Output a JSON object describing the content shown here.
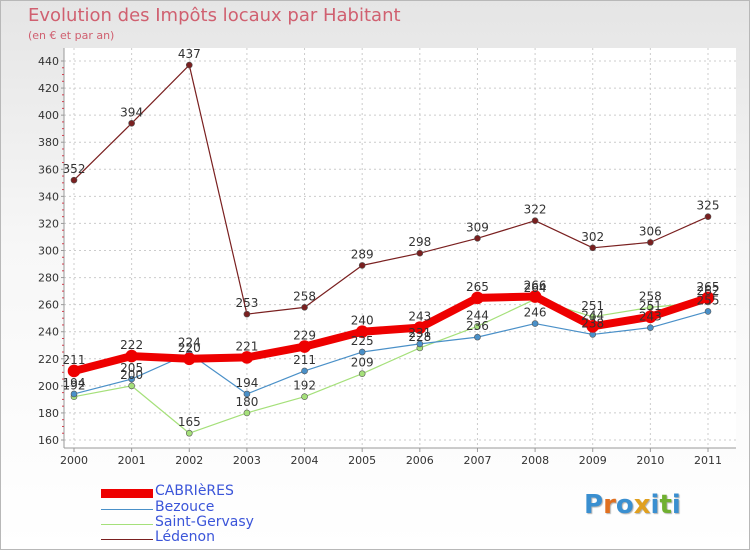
{
  "chart_data": {
    "type": "line",
    "title": "Evolution des Impôts locaux par Habitant",
    "subtitle": "(en € et par an)",
    "categories": [
      "2000",
      "2001",
      "2002",
      "2003",
      "2004",
      "2005",
      "2006",
      "2007",
      "2008",
      "2009",
      "2010",
      "2011"
    ],
    "ylim": [
      160,
      440
    ],
    "yticks": [
      160,
      180,
      200,
      220,
      240,
      260,
      280,
      300,
      320,
      340,
      360,
      380,
      400,
      420,
      440
    ],
    "series": [
      {
        "name": "Lédenon",
        "color": "#7a2020",
        "width": 1.2,
        "values": [
          352,
          394,
          437,
          253,
          258,
          289,
          298,
          309,
          322,
          302,
          306,
          325
        ]
      },
      {
        "name": "Saint-Gervasy",
        "color": "#a5e07a",
        "width": 1.2,
        "values": [
          192,
          200,
          165,
          180,
          192,
          209,
          228,
          244,
          264,
          251,
          258,
          262
        ]
      },
      {
        "name": "Bezouce",
        "color": "#4a90c8",
        "width": 1.2,
        "values": [
          194,
          205,
          224,
          194,
          211,
          225,
          231,
          236,
          246,
          238,
          243,
          255
        ]
      },
      {
        "name": "CABRIèRES",
        "color": "#ee0000",
        "width": 8,
        "values": [
          211,
          222,
          220,
          221,
          229,
          240,
          243,
          265,
          266,
          244,
          251,
          265
        ]
      }
    ]
  },
  "legend": [
    {
      "name": "CABRIèRES",
      "color": "#ee0000"
    },
    {
      "name": "Bezouce",
      "color": "#4a90c8"
    },
    {
      "name": "Saint-Gervasy",
      "color": "#a5e07a"
    },
    {
      "name": "Lédenon",
      "color": "#7a2020"
    }
  ],
  "logo": {
    "letters": [
      "P",
      "r",
      "o",
      "x",
      "i",
      "t",
      "i"
    ],
    "colors": [
      "#3a8fd0",
      "#e07020",
      "#3a8fd0",
      "#e0a020",
      "#3a8fd0",
      "#70b030",
      "#3a8fd0"
    ]
  }
}
